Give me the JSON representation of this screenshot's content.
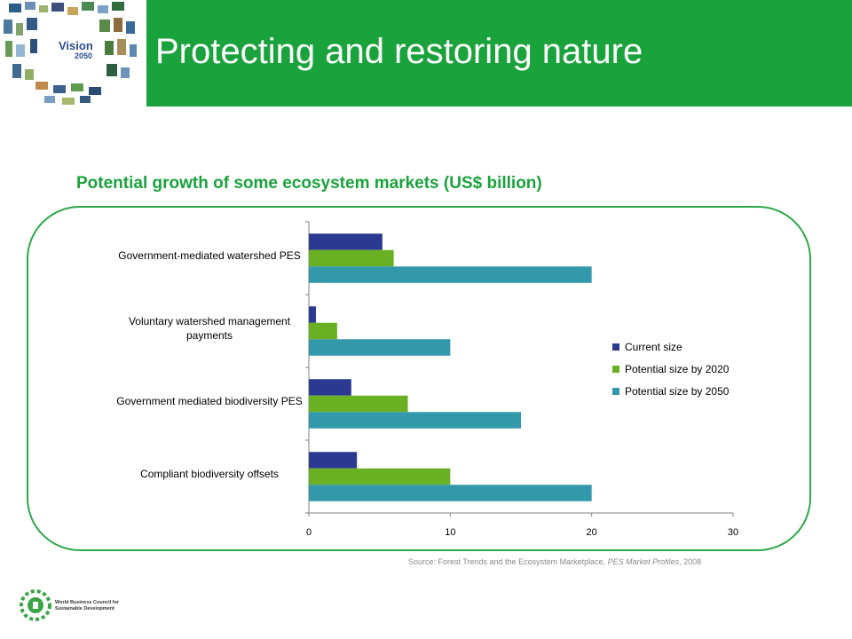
{
  "header": {
    "title": "Protecting and restoring nature",
    "logo_text_line1": "Vision",
    "logo_text_line2": "2050"
  },
  "chart_heading": "Potential growth of some ecosystem markets (US$ billion)",
  "source": {
    "prefix": "Source: Forest Trends and the Ecosystem Marketplace, ",
    "italic": "PES Market Profiles",
    "suffix": ", 2008"
  },
  "footer": {
    "org_name": "World Business Council for Sustainable Development"
  },
  "colors": {
    "brand_green": "#1aa33c",
    "current": "#2b3990",
    "p2020": "#6ab023",
    "p2050": "#3399aa"
  },
  "chart_data": {
    "type": "bar",
    "orientation": "horizontal",
    "categories": [
      "Government-mediated watershed PES",
      "Voluntary watershed management payments",
      "Government mediated biodiversity PES",
      "Compliant biodiversity offsets"
    ],
    "category_label_lines": [
      [
        "Government-mediated watershed PES"
      ],
      [
        "Voluntary watershed management",
        "payments"
      ],
      [
        "Government mediated biodiversity PES"
      ],
      [
        "Compliant biodiversity offsets"
      ]
    ],
    "series": [
      {
        "name": "Current size",
        "values": [
          5.2,
          0.5,
          3,
          3.4
        ]
      },
      {
        "name": "Potential size by 2020",
        "values": [
          6,
          2,
          7,
          10
        ]
      },
      {
        "name": "Potential size by 2050",
        "values": [
          20,
          10,
          15,
          20
        ]
      }
    ],
    "xlim": [
      0,
      30
    ],
    "xticks": [
      0,
      10,
      20,
      30
    ],
    "legend_position": "right",
    "grid": false
  }
}
